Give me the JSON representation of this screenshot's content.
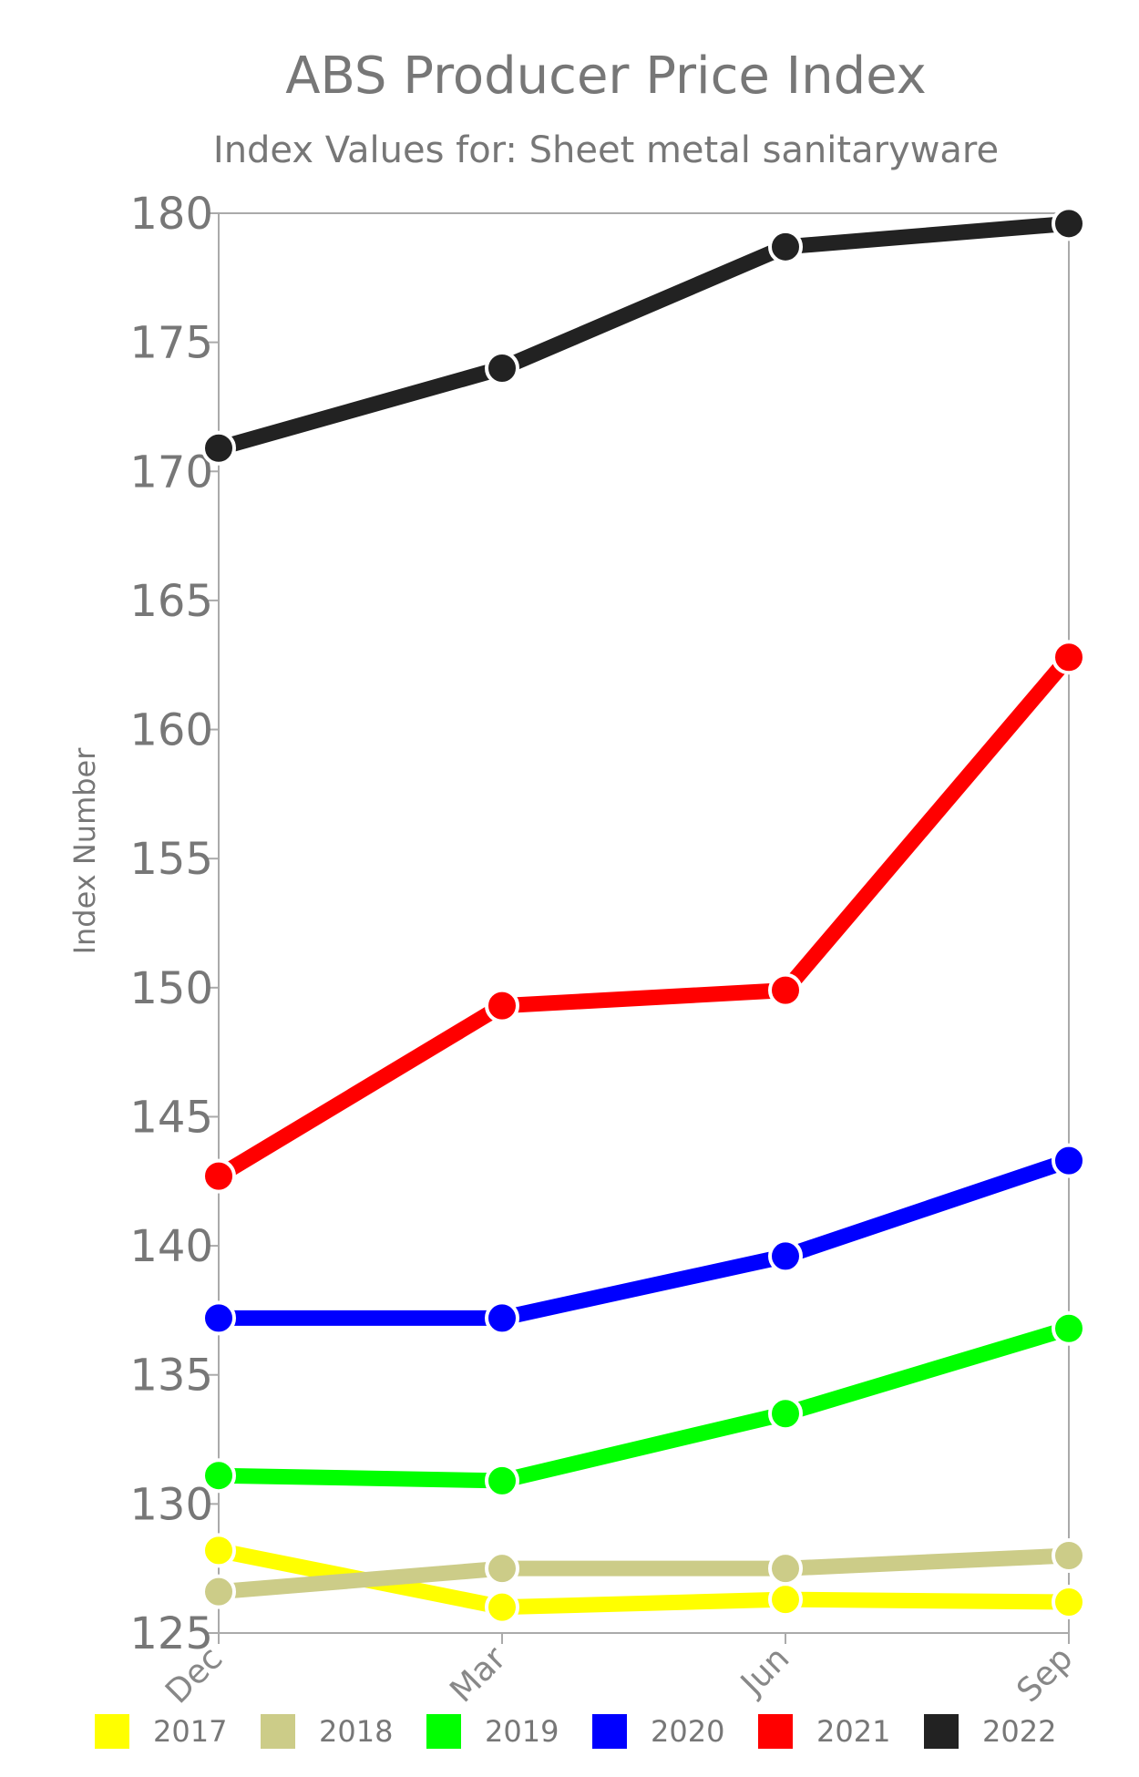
{
  "chart_data": {
    "type": "line",
    "title": "ABS Producer Price Index",
    "subtitle": "Index Values for: Sheet metal sanitaryware",
    "ylabel": "Index Number",
    "xlabel": "",
    "categories": [
      "Dec",
      "Mar",
      "Jun",
      "Sep"
    ],
    "ylim": [
      125,
      180
    ],
    "yticks": [
      125,
      130,
      135,
      140,
      145,
      150,
      155,
      160,
      165,
      170,
      175,
      180
    ],
    "grid": false,
    "legend_position": "bottom",
    "series": [
      {
        "name": "2017",
        "color": "#ffff00",
        "values": [
          128.2,
          126.0,
          126.3,
          126.2
        ]
      },
      {
        "name": "2018",
        "color": "#cccc88",
        "values": [
          126.6,
          127.5,
          127.5,
          128.0
        ]
      },
      {
        "name": "2019",
        "color": "#00ff00",
        "values": [
          131.1,
          130.9,
          133.5,
          136.8
        ]
      },
      {
        "name": "2020",
        "color": "#0000ff",
        "values": [
          137.2,
          137.2,
          139.6,
          143.3
        ]
      },
      {
        "name": "2021",
        "color": "#ff0000",
        "values": [
          142.7,
          149.3,
          149.9,
          162.8
        ]
      },
      {
        "name": "2022",
        "color": "#222222",
        "values": [
          170.9,
          174.0,
          178.7,
          179.6
        ]
      }
    ]
  }
}
